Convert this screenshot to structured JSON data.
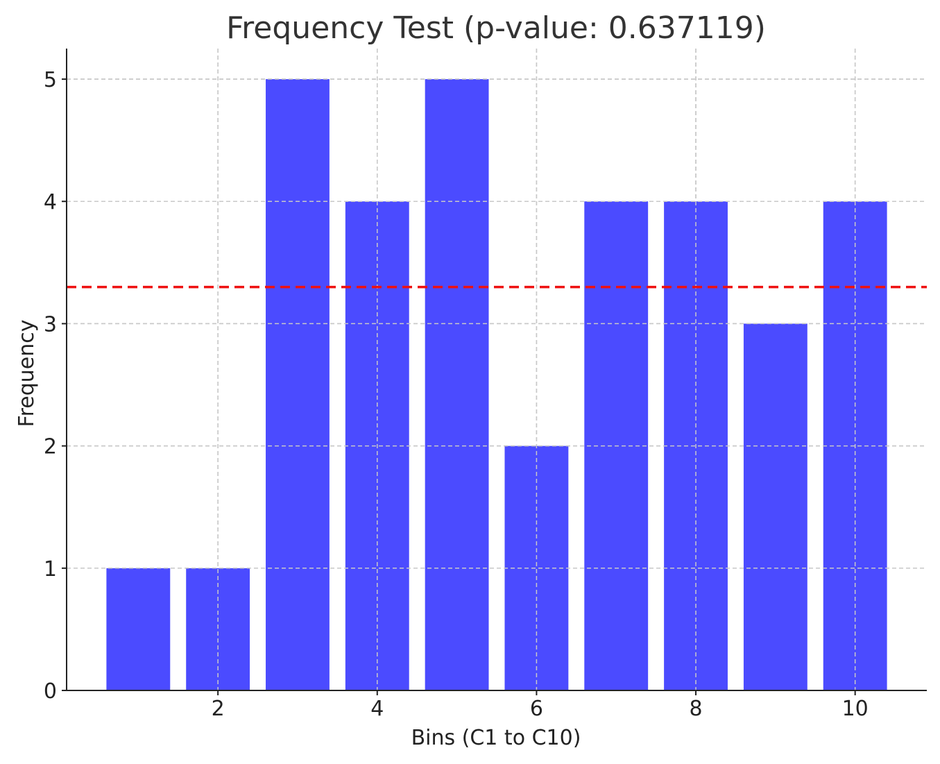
{
  "chart_data": {
    "type": "bar",
    "title": "Frequency Test (p-value: 0.637119)",
    "xlabel": "Bins (C1 to C10)",
    "ylabel": "Frequency",
    "x": [
      1,
      2,
      3,
      4,
      5,
      6,
      7,
      8,
      9,
      10
    ],
    "values": [
      1,
      1,
      5,
      4,
      5,
      2,
      4,
      4,
      3,
      4
    ],
    "xlim": [
      0.1,
      10.9
    ],
    "ylim": [
      0,
      5.25
    ],
    "xticks": [
      2,
      4,
      6,
      8,
      10
    ],
    "yticks": [
      0,
      1,
      2,
      3,
      4,
      5
    ],
    "bar_width": 0.8,
    "bar_color": "#4b4bff",
    "reference_line": {
      "y": 3.3,
      "color": "#ee1111",
      "style": "dashed"
    },
    "grid": true
  }
}
